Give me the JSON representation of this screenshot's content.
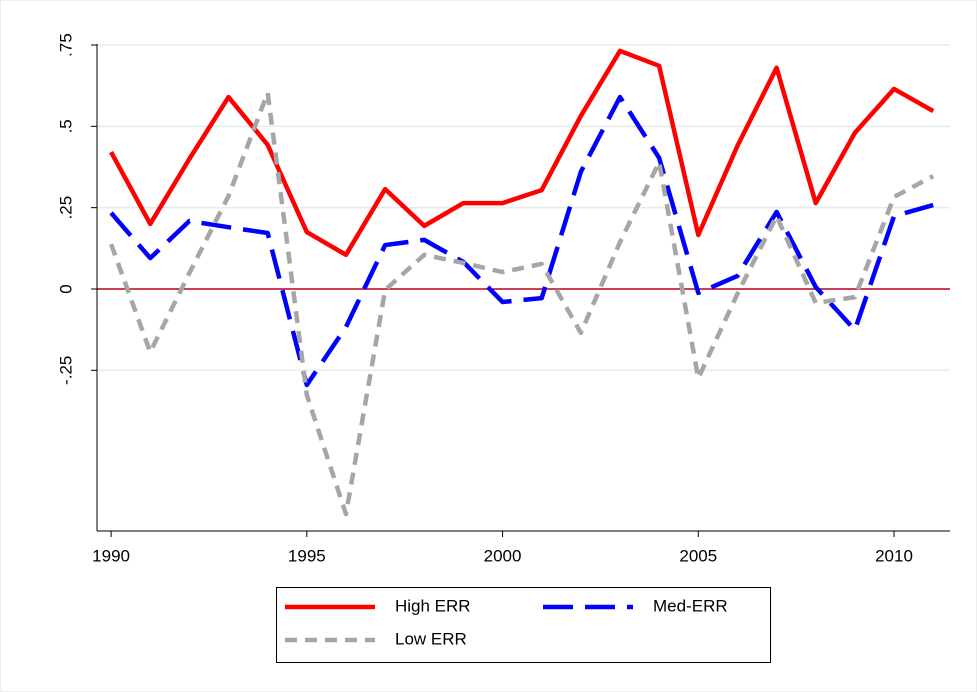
{
  "chart_data": {
    "type": "line",
    "x": [
      1990,
      1991,
      1992,
      1993,
      1994,
      1995,
      1996,
      1997,
      1998,
      1999,
      2000,
      2001,
      2002,
      2003,
      2004,
      2005,
      2006,
      2007,
      2008,
      2009,
      2010,
      2011
    ],
    "series": [
      {
        "name": "High ERR",
        "color": "#ff0000",
        "style": "solid",
        "values": [
          0.421,
          0.2,
          0.4,
          0.59,
          0.443,
          0.175,
          0.105,
          0.307,
          0.194,
          0.264,
          0.264,
          0.304,
          0.532,
          0.732,
          0.686,
          0.166,
          0.44,
          0.68,
          0.264,
          0.48,
          0.615,
          0.547
        ]
      },
      {
        "name": "Med-ERR",
        "color": "#0000ff",
        "style": "longdash",
        "values": [
          0.234,
          0.095,
          0.209,
          0.19,
          0.172,
          -0.295,
          -0.117,
          0.135,
          0.151,
          0.083,
          -0.04,
          -0.028,
          0.36,
          0.59,
          0.403,
          -0.012,
          0.04,
          0.237,
          0.006,
          -0.126,
          0.224,
          0.258
        ]
      },
      {
        "name": "Low ERR",
        "color": "#a6a6a6",
        "style": "shortdash",
        "values": [
          0.138,
          -0.194,
          0.049,
          0.286,
          0.603,
          -0.326,
          -0.692,
          -0.003,
          0.105,
          0.08,
          0.052,
          0.077,
          -0.135,
          0.144,
          0.39,
          -0.274,
          -0.015,
          0.224,
          -0.043,
          -0.025,
          0.283,
          0.347
        ]
      }
    ],
    "xlim": [
      1989.64,
      2011.43
    ],
    "xticks": [
      1990,
      1995,
      2000,
      2005,
      2010
    ],
    "ylim": [
      -0.744,
      0.79
    ],
    "yticks": [
      {
        "value": -0.25,
        "label": "-.25"
      },
      0,
      {
        "value": 0.25,
        "label": ".25"
      },
      {
        "value": 0.5,
        "label": ".5"
      },
      {
        "value": 0.75,
        "label": ".75"
      }
    ],
    "grid": true,
    "yline": 0,
    "yline_color": "#c00020",
    "legend": "bottom"
  }
}
